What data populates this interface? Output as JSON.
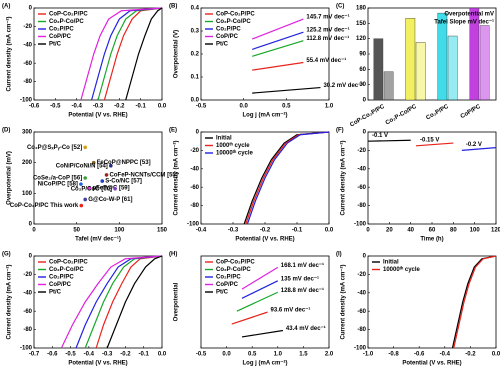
{
  "chart_data": [
    {
      "type": "line",
      "panel": "(A)",
      "xlabel": "Potential (V vs. RHE)",
      "ylabel": "Current density (mA cm⁻²)",
      "xlim": [
        -0.6,
        0
      ],
      "xticks": [
        -0.6,
        -0.5,
        -0.4,
        -0.3,
        -0.2,
        -0.1,
        {
          "value": 0,
          "label": "0.0"
        }
      ],
      "ylim": [
        -100,
        0
      ],
      "yticks": [
        -100,
        -80,
        -60,
        -40,
        -20,
        0
      ],
      "legend": "upper left",
      "series": [
        {
          "name": "CoP-Co₂P/PC",
          "color": "#e8231c",
          "x": [
            -0.27,
            -0.24,
            -0.21,
            -0.18,
            -0.14,
            -0.1,
            0
          ],
          "values": [
            -100,
            -75,
            -50,
            -30,
            -12,
            -3,
            0
          ]
        },
        {
          "name": "Co₂P-Co/PC",
          "color": "#18a82a",
          "x": [
            -0.3,
            -0.27,
            -0.24,
            -0.21,
            -0.17,
            -0.12,
            0
          ],
          "values": [
            -100,
            -75,
            -50,
            -30,
            -12,
            -3,
            0
          ]
        },
        {
          "name": "Co₂P/PC",
          "color": "#2222e0",
          "x": [
            -0.33,
            -0.3,
            -0.27,
            -0.24,
            -0.2,
            -0.15,
            0
          ],
          "values": [
            -100,
            -75,
            -50,
            -30,
            -12,
            -3,
            0
          ]
        },
        {
          "name": "CoP/PC",
          "color": "#e020e0",
          "x": [
            -0.38,
            -0.35,
            -0.32,
            -0.29,
            -0.25,
            -0.19,
            0
          ],
          "values": [
            -100,
            -75,
            -50,
            -30,
            -12,
            -3,
            0
          ]
        },
        {
          "name": "Pt/C",
          "color": "#000000",
          "x": [
            -0.17,
            -0.14,
            -0.11,
            -0.08,
            -0.05,
            -0.02,
            0
          ],
          "values": [
            -100,
            -75,
            -50,
            -30,
            -12,
            -3,
            0
          ]
        }
      ]
    },
    {
      "type": "line",
      "panel": "(B)",
      "xlabel": "Log j (mA cm⁻²)",
      "ylabel": "Overpotential (V)",
      "xlim": [
        -0.5,
        1
      ],
      "xticks": [
        -0.5,
        {
          "value": 0,
          "label": "0.0"
        },
        0.5,
        {
          "value": 1,
          "label": "1.0"
        }
      ],
      "ylim": [
        0,
        0.4
      ],
      "yticks": [
        {
          "value": 0,
          "label": "0.0"
        },
        0.1,
        0.2,
        0.3,
        0.4
      ],
      "legend": "upper left",
      "series": [
        {
          "name": "CoP-Co₂P/PC",
          "color": "#e8231c",
          "x": [
            0.1,
            0.7
          ],
          "values": [
            0.13,
            0.163
          ],
          "slope_label": "55.4 mV dec⁻¹"
        },
        {
          "name": "Co₂P-Co/PC",
          "color": "#18a82a",
          "x": [
            0.1,
            0.7
          ],
          "values": [
            0.19,
            0.258
          ],
          "slope_label": "112.8 mV dec⁻¹"
        },
        {
          "name": "Co₂P/PC",
          "color": "#2222e0",
          "x": [
            0.1,
            0.7
          ],
          "values": [
            0.22,
            0.295
          ],
          "slope_label": "125.2 mV dec⁻¹"
        },
        {
          "name": "CoP/PC",
          "color": "#e020e0",
          "x": [
            0.1,
            0.7
          ],
          "values": [
            0.265,
            0.352
          ],
          "slope_label": "145.7 mV dec⁻¹"
        },
        {
          "name": "Pt/C",
          "color": "#000000",
          "x": [
            0.1,
            0.9
          ],
          "values": [
            0.03,
            0.054
          ],
          "slope_label": "30.2 mV dec⁻¹"
        }
      ]
    },
    {
      "type": "bar",
      "panel": "(C)",
      "categories": [
        "CoP-Co₂P/PC",
        "Co₂P-Co/PC",
        "Co₂P/PC",
        "CoP/PC"
      ],
      "colors": [
        "#555555",
        "#f2f060",
        "#40dce8",
        "#c040e0"
      ],
      "ylim": [
        0,
        180
      ],
      "yticks": [
        0,
        30,
        60,
        90,
        120,
        150,
        180
      ],
      "series": [
        {
          "name": "Overpotential mV",
          "values": [
            120,
            160,
            170,
            180
          ]
        },
        {
          "name": "Tafel Slope mV dec⁻¹",
          "values": [
            55.4,
            112.8,
            125.2,
            145.7
          ]
        }
      ]
    },
    {
      "type": "scatter",
      "panel": "(D)",
      "xlabel": "Tafel (mV dec⁻¹)",
      "ylabel": "Overpotential (mV)",
      "xlim": [
        0,
        150
      ],
      "xticks": [
        0,
        50,
        100,
        150
      ],
      "ylim": [
        0,
        300
      ],
      "yticks": [
        0,
        100,
        200,
        300
      ],
      "labels": [
        "Co₂P@SₓPᵧ-Co [52]",
        "FeCoP@NPPC [53]",
        "CoNiP/CoNi/N [54]",
        "CoFeP-NCNTs/CCM [55]",
        "CoSe₂/a-CoP [56]",
        "S-Co/NC [57]",
        "NiCoP/PC [58]",
        "pFeP@C [59]",
        "Co₂P/CoO [60]",
        "G@Co-W-P [61]",
        "CoP-Co₂P/PC This work"
      ],
      "x": [
        60,
        70,
        90,
        85,
        60,
        80,
        55,
        65,
        95,
        60,
        55.4
      ],
      "values": [
        250,
        200,
        190,
        160,
        150,
        140,
        130,
        118,
        115,
        80,
        60
      ],
      "colors": [
        "#d4a020",
        "#806020",
        "#203080",
        "#a02020",
        "#40a040",
        "#2040c0",
        "#2060e0",
        "#e040e0",
        "#8040c0",
        "#4040a0",
        "#e8231c"
      ]
    },
    {
      "type": "line",
      "panel": "(E)",
      "xlabel": "Potential (V vs. RHE)",
      "ylabel": "Current density (mA cm⁻²)",
      "xlim": [
        -0.4,
        0
      ],
      "xticks": [
        -0.4,
        -0.3,
        -0.2,
        -0.1,
        {
          "value": 0,
          "label": "0.0"
        }
      ],
      "ylim": [
        -100,
        0
      ],
      "yticks": [
        -100,
        -80,
        -60,
        -40,
        -20,
        0
      ],
      "legend": "upper left",
      "series": [
        {
          "name": "Initial",
          "color": "#000000",
          "x": [
            -0.265,
            -0.24,
            -0.21,
            -0.18,
            -0.14,
            -0.1,
            0
          ],
          "values": [
            -100,
            -75,
            -50,
            -30,
            -12,
            -3,
            0
          ]
        },
        {
          "name": "1000ᵗʰ cycle",
          "color": "#e8231c",
          "x": [
            -0.26,
            -0.235,
            -0.205,
            -0.175,
            -0.135,
            -0.095,
            0
          ],
          "values": [
            -100,
            -75,
            -50,
            -30,
            -12,
            -3,
            0
          ]
        },
        {
          "name": "10000ᵗʰ cycle",
          "color": "#2222e0",
          "x": [
            -0.255,
            -0.23,
            -0.2,
            -0.17,
            -0.13,
            -0.09,
            0
          ],
          "values": [
            -100,
            -75,
            -50,
            -30,
            -12,
            -3,
            0
          ]
        }
      ]
    },
    {
      "type": "line",
      "panel": "(F)",
      "xlabel": "Time (h)",
      "ylabel": "Current density (mA cm⁻²)",
      "xlim": [
        0,
        120
      ],
      "xticks": [
        0,
        20,
        40,
        60,
        80,
        100,
        120
      ],
      "ylim": [
        -100,
        0
      ],
      "yticks": [
        -100,
        -80,
        -60,
        -40,
        -20,
        0
      ],
      "inline_names": true,
      "series": [
        {
          "name": "-0.1 V",
          "color": "#000000",
          "x": [
            0,
            40
          ],
          "values": [
            -10,
            -9
          ]
        },
        {
          "name": "-0.15 V",
          "color": "#e8231c",
          "x": [
            45,
            80
          ],
          "values": [
            -15,
            -12
          ]
        },
        {
          "name": "-0.2 V",
          "color": "#2222e0",
          "x": [
            88,
            120
          ],
          "values": [
            -20,
            -17
          ]
        }
      ]
    },
    {
      "type": "line",
      "panel": "(G)",
      "xlabel": "Potential (V vs. RHE)",
      "ylabel": "Current density (mA cm⁻²)",
      "xlim": [
        -0.7,
        0
      ],
      "xticks": [
        -0.7,
        -0.6,
        -0.5,
        -0.4,
        -0.3,
        -0.2,
        -0.1,
        {
          "value": 0,
          "label": "0.0"
        }
      ],
      "ylim": [
        -100,
        0
      ],
      "yticks": [
        -100,
        -80,
        -60,
        -40,
        -20,
        0
      ],
      "legend": "upper left",
      "series": [
        {
          "name": "CoP-Co₂P/PC",
          "color": "#e8231c",
          "x": [
            -0.36,
            -0.32,
            -0.27,
            -0.22,
            -0.17,
            -0.12,
            0
          ],
          "values": [
            -100,
            -75,
            -50,
            -30,
            -12,
            -3,
            0
          ]
        },
        {
          "name": "Co₂P-Co/PC",
          "color": "#18a82a",
          "x": [
            -0.42,
            -0.37,
            -0.32,
            -0.27,
            -0.21,
            -0.15,
            0
          ],
          "values": [
            -100,
            -75,
            -50,
            -30,
            -12,
            -3,
            0
          ]
        },
        {
          "name": "Co₂P/PC",
          "color": "#2222e0",
          "x": [
            -0.47,
            -0.42,
            -0.36,
            -0.3,
            -0.24,
            -0.17,
            0
          ],
          "values": [
            -100,
            -75,
            -50,
            -30,
            -12,
            -3,
            0
          ]
        },
        {
          "name": "CoP/PC",
          "color": "#e020e0",
          "x": [
            -0.55,
            -0.49,
            -0.42,
            -0.35,
            -0.28,
            -0.2,
            0
          ],
          "values": [
            -100,
            -75,
            -50,
            -30,
            -12,
            -3,
            0
          ]
        },
        {
          "name": "Pt/C",
          "color": "#000000",
          "x": [
            -0.3,
            -0.25,
            -0.2,
            -0.15,
            -0.09,
            -0.04,
            0
          ],
          "values": [
            -100,
            -75,
            -50,
            -30,
            -12,
            -3,
            0
          ]
        }
      ]
    },
    {
      "type": "line",
      "panel": "(H)",
      "xlabel": "Log j (mA cm⁻²)",
      "ylabel": "Overpotential",
      "xlim": [
        -0.5,
        2
      ],
      "xticks": [
        -0.5,
        {
          "value": 0,
          "label": "0.0"
        },
        0.5,
        {
          "value": 1,
          "label": "1.0"
        },
        1.5,
        {
          "value": 2,
          "label": "2.0"
        }
      ],
      "ylim": [
        0,
        0.5
      ],
      "legend": "upper left",
      "series": [
        {
          "name": "CoP-Co₂P/PC",
          "color": "#e8231c",
          "x": [
            0.1,
            0.8
          ],
          "values": [
            0.13,
            0.195
          ],
          "slope_label": "93.6 mV dec⁻¹"
        },
        {
          "name": "Co₂P-Co/PC",
          "color": "#18a82a",
          "x": [
            0.2,
            1.0
          ],
          "values": [
            0.2,
            0.303
          ],
          "slope_label": "128.8 mV dec⁻¹"
        },
        {
          "name": "Co₂P/PC",
          "color": "#2222e0",
          "x": [
            0.3,
            1.0
          ],
          "values": [
            0.27,
            0.365
          ],
          "slope_label": "135 mV dec⁻¹"
        },
        {
          "name": "CoP/PC",
          "color": "#e020e0",
          "x": [
            0.3,
            1.0
          ],
          "values": [
            0.32,
            0.438
          ],
          "slope_label": "168.1 mV dec⁻¹"
        },
        {
          "name": "Pt/C",
          "color": "#000000",
          "x": [
            0.3,
            1.1
          ],
          "values": [
            0.06,
            0.095
          ],
          "slope_label": "43.4 mV dec⁻¹"
        }
      ]
    },
    {
      "type": "line",
      "panel": "(I)",
      "xlabel": "Potential (V vs. RHE)",
      "ylabel": "Current density (mA cm⁻²)",
      "xlim": [
        -1,
        0
      ],
      "xticks": [
        {
          "value": -1,
          "label": "-1.0"
        },
        -0.8,
        -0.6,
        -0.4,
        -0.2,
        {
          "value": 0,
          "label": "0.0"
        }
      ],
      "ylim": [
        -100,
        0
      ],
      "yticks": [
        -100,
        -80,
        -60,
        -40,
        -20,
        0
      ],
      "legend": "upper left",
      "series": [
        {
          "name": "Initial",
          "color": "#000000",
          "x": [
            -0.34,
            -0.3,
            -0.26,
            -0.22,
            -0.17,
            -0.11,
            0
          ],
          "values": [
            -100,
            -75,
            -50,
            -30,
            -12,
            -3,
            0
          ]
        },
        {
          "name": "10000ᵗʰ cycle",
          "color": "#e8231c",
          "x": [
            -0.33,
            -0.29,
            -0.25,
            -0.21,
            -0.16,
            -0.1,
            0
          ],
          "values": [
            -100,
            -75,
            -50,
            -30,
            -12,
            -3,
            0
          ]
        }
      ]
    }
  ]
}
